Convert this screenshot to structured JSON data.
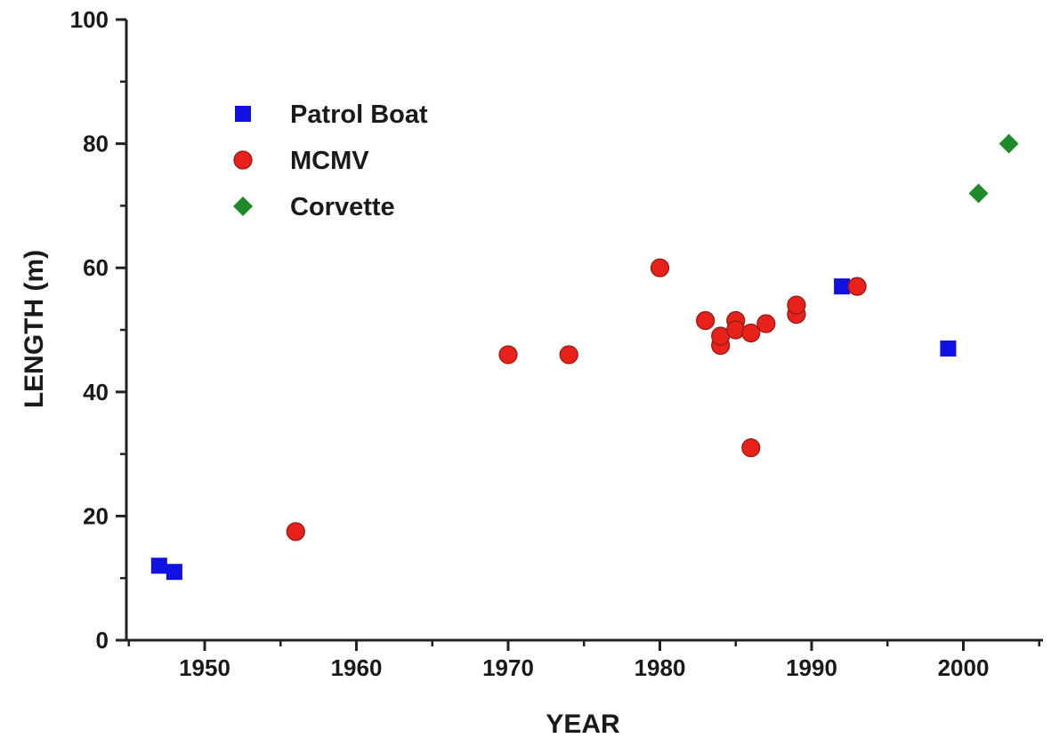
{
  "chart_data": {
    "type": "scatter",
    "xlabel": "YEAR",
    "ylabel": "LENGTH (m)",
    "xlim": [
      1945,
      2005
    ],
    "ylim": [
      0,
      100
    ],
    "xticks": [
      1950,
      1960,
      1970,
      1980,
      1990,
      2000
    ],
    "yticks": [
      0,
      20,
      40,
      60,
      80,
      100
    ],
    "grid": false,
    "legend_position": "top-left",
    "series": [
      {
        "name": "Patrol Boat",
        "marker": "square",
        "color": "#1010e0",
        "points": [
          {
            "x": 1947,
            "y": 12
          },
          {
            "x": 1948,
            "y": 11
          },
          {
            "x": 1992,
            "y": 57
          },
          {
            "x": 1999,
            "y": 47
          }
        ]
      },
      {
        "name": "MCMV",
        "marker": "circle",
        "color": "#e8221b",
        "points": [
          {
            "x": 1956,
            "y": 17.5
          },
          {
            "x": 1970,
            "y": 46
          },
          {
            "x": 1974,
            "y": 46
          },
          {
            "x": 1980,
            "y": 60
          },
          {
            "x": 1983,
            "y": 51.5
          },
          {
            "x": 1984,
            "y": 47.5
          },
          {
            "x": 1984,
            "y": 49
          },
          {
            "x": 1985,
            "y": 51.5
          },
          {
            "x": 1985,
            "y": 50
          },
          {
            "x": 1986,
            "y": 49.5
          },
          {
            "x": 1986,
            "y": 31
          },
          {
            "x": 1987,
            "y": 51
          },
          {
            "x": 1989,
            "y": 52.5
          },
          {
            "x": 1989,
            "y": 54
          },
          {
            "x": 1993,
            "y": 57
          }
        ]
      },
      {
        "name": "Corvette",
        "marker": "diamond",
        "color": "#1e8a2a",
        "points": [
          {
            "x": 2001,
            "y": 72
          },
          {
            "x": 2003,
            "y": 80
          }
        ]
      }
    ]
  }
}
